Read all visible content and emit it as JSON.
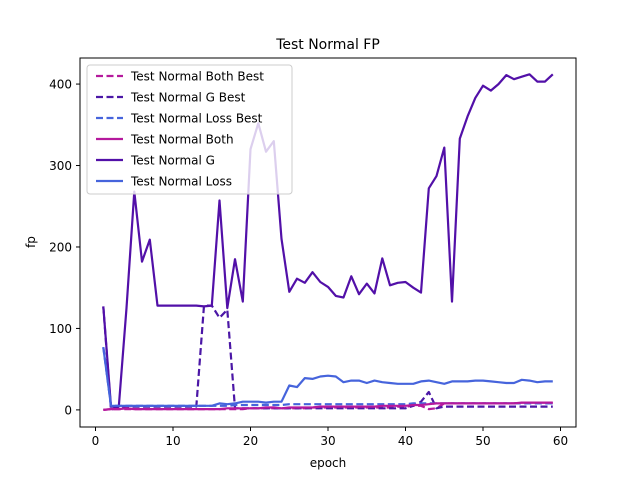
{
  "chart_data": {
    "type": "line",
    "title": "Test Normal FP",
    "xlabel": "epoch",
    "ylabel": "fp",
    "xlim": [
      -2,
      62
    ],
    "ylim": [
      -21,
      432
    ],
    "xticks": [
      0,
      10,
      20,
      30,
      40,
      50,
      60
    ],
    "yticks": [
      0,
      100,
      200,
      300,
      400
    ],
    "grid": false,
    "legend_position": "top-left",
    "series": [
      {
        "name": "Test Normal Both Best",
        "color": "#b5199d",
        "style": "dashed",
        "x": [
          1,
          2,
          3,
          4,
          5,
          6,
          7,
          8,
          9,
          10,
          11,
          12,
          13,
          14,
          15,
          16,
          17,
          18,
          19,
          20,
          21,
          22,
          23,
          24,
          25,
          26,
          27,
          28,
          29,
          30,
          31,
          32,
          33,
          34,
          35,
          36,
          37,
          38,
          39,
          40,
          41,
          42,
          43,
          44,
          45,
          46,
          47,
          48,
          49,
          50,
          51,
          52,
          53,
          54,
          55,
          56,
          57,
          58,
          59
        ],
        "y": [
          0,
          1,
          1,
          1,
          1,
          1,
          1,
          1,
          1,
          1,
          1,
          1,
          1,
          1,
          1,
          1,
          1,
          1,
          1,
          2,
          2,
          2,
          2,
          2,
          2,
          2,
          2,
          3,
          3,
          3,
          3,
          3,
          3,
          3,
          3,
          3,
          3,
          3,
          4,
          4,
          5,
          5,
          1,
          2,
          8,
          8,
          8,
          8,
          8,
          8,
          8,
          8,
          8,
          8,
          9,
          9,
          9,
          9,
          8
        ]
      },
      {
        "name": "Test Normal G Best",
        "color": "#4b17a6",
        "style": "dashed",
        "x": [
          1,
          2,
          3,
          4,
          5,
          6,
          7,
          8,
          9,
          10,
          11,
          12,
          13,
          14,
          15,
          16,
          17,
          18,
          19,
          20,
          21,
          22,
          23,
          24,
          25,
          26,
          27,
          28,
          29,
          30,
          31,
          32,
          33,
          34,
          35,
          36,
          37,
          38,
          39,
          40,
          41,
          42,
          43,
          44,
          45,
          46,
          47,
          48,
          49,
          50,
          51,
          52,
          53,
          54,
          55,
          56,
          57,
          58,
          59
        ],
        "y": [
          127,
          0,
          4,
          4,
          4,
          4,
          4,
          4,
          4,
          4,
          4,
          4,
          4,
          128,
          128,
          113,
          123,
          2,
          2,
          2,
          2,
          2,
          2,
          2,
          2,
          2,
          2,
          2,
          2,
          2,
          2,
          2,
          2,
          2,
          2,
          2,
          2,
          2,
          2,
          2,
          5,
          10,
          22,
          2,
          4,
          4,
          4,
          4,
          4,
          4,
          4,
          4,
          4,
          4,
          4,
          4,
          4,
          4,
          4
        ]
      },
      {
        "name": "Test Normal Loss Best",
        "color": "#4664dc",
        "style": "dashed",
        "x": [
          1,
          2,
          3,
          4,
          5,
          6,
          7,
          8,
          9,
          10,
          11,
          12,
          13,
          14,
          15,
          16,
          17,
          18,
          19,
          20,
          21,
          22,
          23,
          24,
          25,
          26,
          27,
          28,
          29,
          30,
          31,
          32,
          33,
          34,
          35,
          36,
          37,
          38,
          39,
          40,
          41,
          42,
          43,
          44,
          45,
          46,
          47,
          48,
          49,
          50,
          51,
          52,
          53,
          54,
          55,
          56,
          57,
          58,
          59
        ],
        "y": [
          77,
          5,
          5,
          5,
          5,
          5,
          5,
          5,
          5,
          5,
          5,
          5,
          5,
          5,
          5,
          5,
          5,
          6,
          6,
          6,
          6,
          6,
          6,
          6,
          7,
          7,
          7,
          7,
          7,
          7,
          7,
          7,
          7,
          7,
          7,
          7,
          7,
          7,
          7,
          7,
          8,
          8,
          8,
          8,
          8,
          8,
          8,
          8,
          8,
          8,
          8,
          8,
          8,
          8,
          8,
          8,
          8,
          8,
          8
        ]
      },
      {
        "name": "Test Normal Both",
        "color": "#b5199d",
        "style": "solid",
        "x": [
          1,
          2,
          3,
          4,
          5,
          6,
          7,
          8,
          9,
          10,
          11,
          12,
          13,
          14,
          15,
          16,
          17,
          18,
          19,
          20,
          21,
          22,
          23,
          24,
          25,
          26,
          27,
          28,
          29,
          30,
          31,
          32,
          33,
          34,
          35,
          36,
          37,
          38,
          39,
          40,
          41,
          42,
          43,
          44,
          45,
          46,
          47,
          48,
          49,
          50,
          51,
          52,
          53,
          54,
          55,
          56,
          57,
          58,
          59
        ],
        "y": [
          0,
          1,
          1,
          2,
          1,
          1,
          1,
          1,
          1,
          1,
          1,
          1,
          1,
          1,
          1,
          1,
          2,
          2,
          2,
          2,
          2,
          3,
          3,
          2,
          3,
          3,
          3,
          3,
          4,
          4,
          4,
          4,
          4,
          4,
          4,
          4,
          5,
          5,
          5,
          5,
          6,
          6,
          7,
          8,
          8,
          8,
          8,
          8,
          8,
          8,
          8,
          8,
          8,
          8,
          9,
          9,
          9,
          9,
          9
        ]
      },
      {
        "name": "Test Normal G",
        "color": "#5210a8",
        "style": "solid",
        "x": [
          1,
          2,
          3,
          4,
          5,
          6,
          7,
          8,
          9,
          10,
          11,
          12,
          13,
          14,
          15,
          16,
          17,
          18,
          19,
          20,
          21,
          22,
          23,
          24,
          25,
          26,
          27,
          28,
          29,
          30,
          31,
          32,
          33,
          34,
          35,
          36,
          37,
          38,
          39,
          40,
          41,
          42,
          43,
          44,
          45,
          46,
          47,
          48,
          49,
          50,
          51,
          52,
          53,
          54,
          55,
          56,
          57,
          58,
          59
        ],
        "y": [
          127,
          4,
          4,
          125,
          268,
          182,
          209,
          128,
          128,
          128,
          128,
          128,
          128,
          127,
          128,
          257,
          125,
          185,
          133,
          320,
          352,
          317,
          330,
          210,
          145,
          161,
          156,
          169,
          157,
          151,
          140,
          138,
          164,
          142,
          155,
          143,
          186,
          153,
          156,
          157,
          150,
          144,
          272,
          287,
          322,
          133,
          333,
          360,
          383,
          398,
          392,
          400,
          411,
          406,
          409,
          412,
          403,
          403,
          412
        ]
      },
      {
        "name": "Test Normal Loss",
        "color": "#4664dc",
        "style": "solid",
        "x": [
          1,
          2,
          3,
          4,
          5,
          6,
          7,
          8,
          9,
          10,
          11,
          12,
          13,
          14,
          15,
          16,
          17,
          18,
          19,
          20,
          21,
          22,
          23,
          24,
          25,
          26,
          27,
          28,
          29,
          30,
          31,
          32,
          33,
          34,
          35,
          36,
          37,
          38,
          39,
          40,
          41,
          42,
          43,
          44,
          45,
          46,
          47,
          48,
          49,
          50,
          51,
          52,
          53,
          54,
          55,
          56,
          57,
          58,
          59
        ],
        "y": [
          77,
          5,
          5,
          5,
          5,
          5,
          5,
          5,
          5,
          5,
          5,
          5,
          5,
          5,
          5,
          8,
          7,
          8,
          10,
          10,
          10,
          9,
          10,
          10,
          30,
          28,
          39,
          38,
          41,
          42,
          41,
          34,
          36,
          36,
          33,
          36,
          34,
          33,
          32,
          32,
          32,
          35,
          36,
          34,
          32,
          35,
          35,
          35,
          36,
          36,
          35,
          34,
          33,
          33,
          37,
          36,
          34,
          35,
          35
        ]
      }
    ]
  }
}
